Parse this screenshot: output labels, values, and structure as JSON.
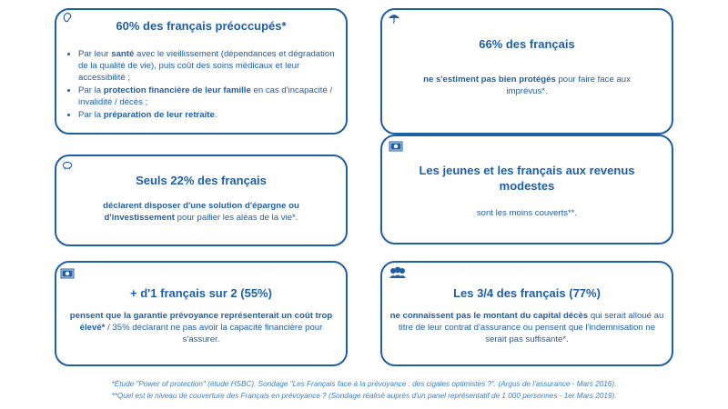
{
  "cards": {
    "c1": {
      "title": "60% des français préoccupés*",
      "items": [
        {
          "a": "Par leur ",
          "b": "santé",
          "c": " avec le vieillissement (dépendances et dégradation de la qualité de vie), puis coût des soins médicaux et leur accessibilité ;"
        },
        {
          "a": "Par la ",
          "b": "protection financière de leur famille",
          "c": " en cas d'incapacité / invalidité / décès ;"
        },
        {
          "a": "Par la ",
          "b": "préparation de leur retraite",
          "c": "."
        }
      ],
      "icon": "ear-icon"
    },
    "c2": {
      "title": "66% des français",
      "bold": "ne s'estiment pas bien protégés",
      "rest": " pour faire face aux imprévus*.",
      "icon": "umbrella-icon"
    },
    "c3": {
      "title": "Seuls 22% des français",
      "bold": "déclarent disposer d'une solution d'épargne ou d'investissement",
      "rest": " pour pallier les aléas de la vie*.",
      "icon": "piggy-bank-icon"
    },
    "c4": {
      "title": "Les jeunes et les français aux revenus modestes",
      "text": "sont les moins couverts**.",
      "icon": "banknote-icon"
    },
    "c5": {
      "title": "+ d'1 français sur 2 (55%)",
      "bold": "pensent que la garantie prévoyance représenterait un coût trop élevé*",
      "rest": " / 35% déclarant ne pas avoir la capacité financière pour s'assurer.",
      "icon": "banknote-icon"
    },
    "c6": {
      "title": "Les 3/4 des français (77%)",
      "bold": "ne connaissent pas le montant du capital décès",
      "rest": " qui serait alloué au titre de leur contrat d'assurance ou pensent que l'indemnisation ne serait pas suffisante*.",
      "icon": "group-icon"
    }
  },
  "footnotes": {
    "f1": "*Étude \"Power of protection\" (étude HSBC). Sondage \"Les Français face à la prévoyance : des cigales optimistes ?\". (Argus de l'assurance - Mars 2016).",
    "f2": "**Quel est le niveau de couverture des Français en prévoyance ? (Sondage réalisé auprès d'un panel représentatif de 1 000 personnes - 1er Mars 2019)."
  },
  "colors": {
    "accent": "#1f5fa7"
  }
}
